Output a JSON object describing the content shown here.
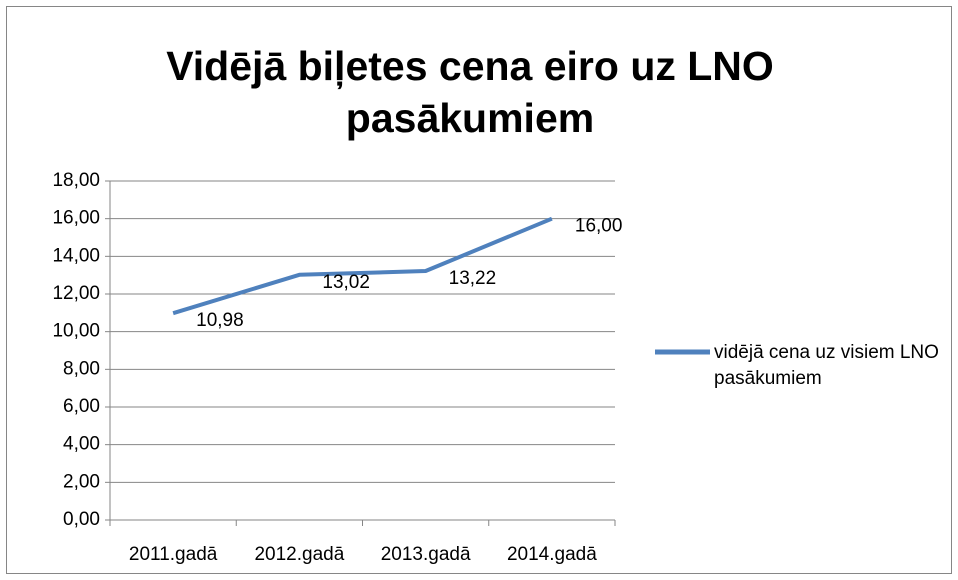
{
  "chart_data": {
    "type": "line",
    "title": "Vidējā biļetes cena eiro uz LNO pasākumiem",
    "categories": [
      "2011.gadā",
      "2012.gadā",
      "2013.gadā",
      "2014.gadā"
    ],
    "series": [
      {
        "name": "vidējā cena uz visiem LNO pasākumiem",
        "color": "#4f81bd",
        "values": [
          10.98,
          13.02,
          13.22,
          16.0
        ],
        "value_labels": [
          "10,98",
          "13,02",
          "13,22",
          "16,00"
        ]
      }
    ],
    "ylim": [
      0,
      18
    ],
    "yticks": [
      {
        "value": 0,
        "label": "0,00"
      },
      {
        "value": 2,
        "label": "2,00"
      },
      {
        "value": 4,
        "label": "4,00"
      },
      {
        "value": 6,
        "label": "6,00"
      },
      {
        "value": 8,
        "label": "8,00"
      },
      {
        "value": 10,
        "label": "10,00"
      },
      {
        "value": 12,
        "label": "12,00"
      },
      {
        "value": 14,
        "label": "14,00"
      },
      {
        "value": 16,
        "label": "16,00"
      },
      {
        "value": 18,
        "label": "18,00"
      }
    ],
    "grid": true,
    "legend": "right"
  }
}
